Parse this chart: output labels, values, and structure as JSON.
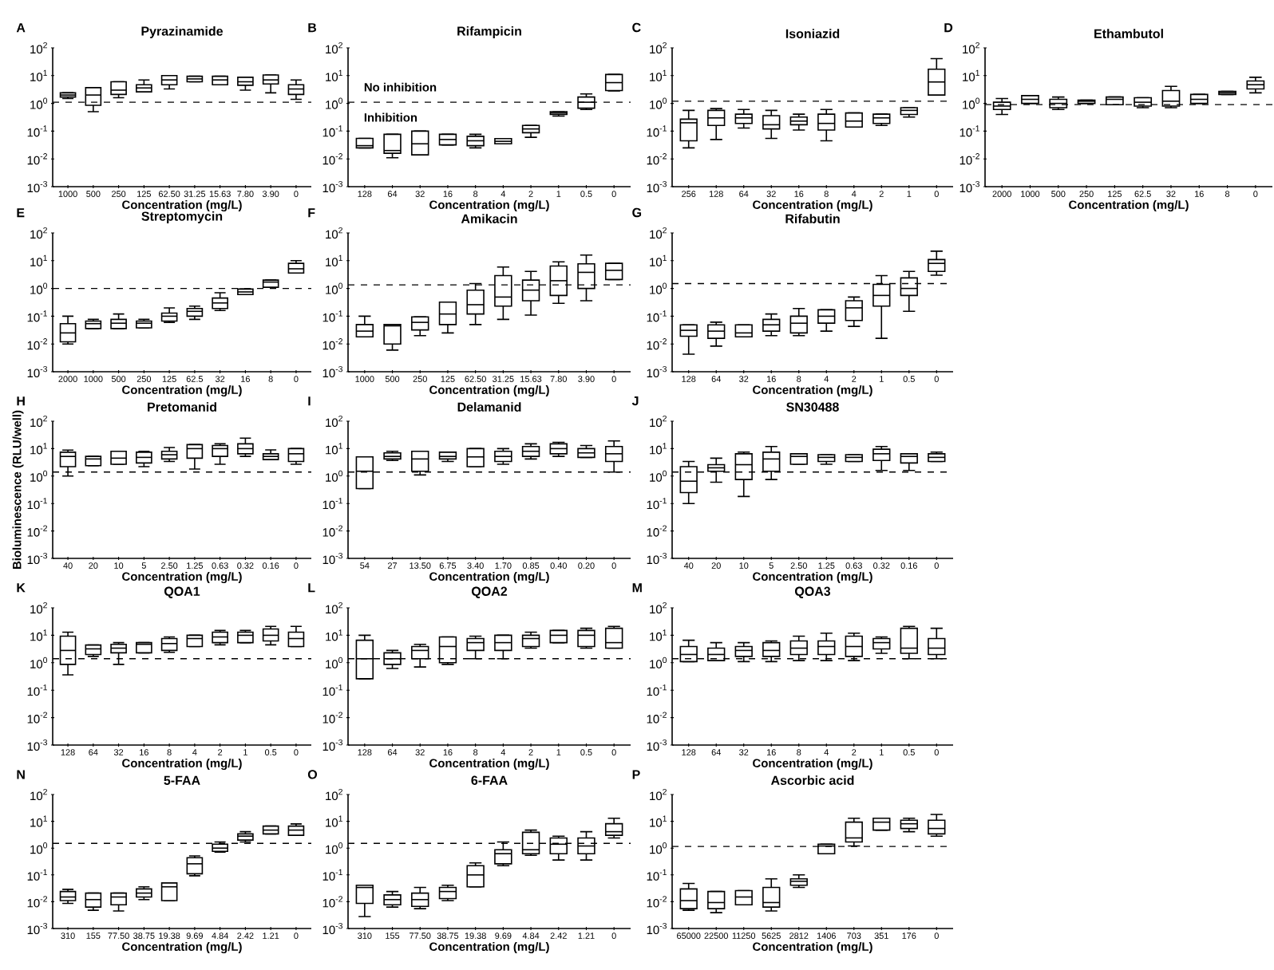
{
  "chart_data": [
    {
      "type": "box",
      "title": "Pyrazinamide",
      "xlabel": "Concentration (mg/L)",
      "log": true,
      "ylim": [
        0.001,
        100
      ],
      "yticks": [
        {
          "value": 0.001,
          "label": "10$^{-3}$"
        },
        {
          "value": 0.01,
          "label": "10$^{-2}$"
        },
        {
          "value": 0.1,
          "label": "10$^{-1}$"
        },
        {
          "value": 1,
          "label": "10$^{0}$"
        },
        {
          "value": 10,
          "label": "10$^{1}$"
        },
        {
          "value": 100,
          "label": "10$^{2}$"
        }
      ],
      "categories": [
        "1000",
        "500",
        "250",
        "125",
        "62.50",
        "31.25",
        "15.63",
        "7.80",
        "3.90",
        "0"
      ],
      "boxes": [
        {
          "low": 1.5,
          "q1": 1.7,
          "median": 2,
          "q3": 2.4,
          "high": 2.4
        },
        {
          "low": 0.5,
          "q1": 0.85,
          "median": 2,
          "q3": 3.7,
          "high": 3.7
        },
        {
          "low": 1.6,
          "q1": 2.1,
          "median": 3,
          "q3": 6,
          "high": 6
        },
        {
          "low": 2.6,
          "q1": 2.6,
          "median": 3.6,
          "q3": 4.7,
          "high": 7
        },
        {
          "low": 3.3,
          "q1": 4.7,
          "median": 7,
          "q3": 10,
          "high": 10
        },
        {
          "low": 6,
          "q1": 6,
          "median": 7.6,
          "q3": 9.5,
          "high": 9.5
        },
        {
          "low": 4.7,
          "q1": 4.7,
          "median": 7,
          "q3": 9.5,
          "high": 9.5
        },
        {
          "low": 3,
          "q1": 4.5,
          "median": 6,
          "q3": 8.7,
          "high": 8.7
        },
        {
          "low": 2.4,
          "q1": 5,
          "median": 7,
          "q3": 10.5,
          "high": 10.5
        },
        {
          "low": 1.4,
          "q1": 2.1,
          "median": 3.3,
          "q3": 4.7,
          "high": 7
        }
      ],
      "ref_lines": [
        {
          "axis": "y",
          "value": 1.1,
          "line_style": "dashed"
        }
      ],
      "annotations": [
        "A"
      ]
    },
    {
      "type": "box",
      "title": "Rifampicin",
      "xlabel": "Concentration (mg/L)",
      "log": true,
      "ylim": [
        0.001,
        100
      ],
      "yticks": [
        {
          "value": 0.001,
          "label": "10$^{-3}$"
        },
        {
          "value": 0.01,
          "label": "10$^{-2}$"
        },
        {
          "value": 0.1,
          "label": "10$^{-1}$"
        },
        {
          "value": 1,
          "label": "10$^{0}$"
        },
        {
          "value": 10,
          "label": "10$^{1}$"
        },
        {
          "value": 100,
          "label": "10$^{2}$"
        }
      ],
      "categories": [
        "128",
        "64",
        "32",
        "16",
        "8",
        "4",
        "2",
        "1",
        "0.5",
        "0"
      ],
      "boxes": [
        {
          "low": 0.025,
          "q1": 0.025,
          "median": 0.03,
          "q3": 0.055,
          "high": 0.055
        },
        {
          "low": 0.011,
          "q1": 0.016,
          "median": 0.02,
          "q3": 0.077,
          "high": 0.077
        },
        {
          "low": 0.014,
          "q1": 0.014,
          "median": 0.035,
          "q3": 0.1,
          "high": 0.1
        },
        {
          "low": 0.032,
          "q1": 0.032,
          "median": 0.05,
          "q3": 0.077,
          "high": 0.077
        },
        {
          "low": 0.025,
          "q1": 0.03,
          "median": 0.045,
          "q3": 0.065,
          "high": 0.077
        },
        {
          "low": 0.035,
          "q1": 0.035,
          "median": 0.043,
          "q3": 0.054,
          "high": 0.054
        },
        {
          "low": 0.06,
          "q1": 0.088,
          "median": 0.12,
          "q3": 0.16,
          "high": 0.16
        },
        {
          "low": 0.35,
          "q1": 0.4,
          "median": 0.45,
          "q3": 0.5,
          "high": 0.5
        },
        {
          "low": 0.6,
          "q1": 0.67,
          "median": 1.1,
          "q3": 1.7,
          "high": 2.2
        },
        {
          "low": 2.8,
          "q1": 2.9,
          "median": 5.6,
          "q3": 11,
          "high": 11
        }
      ],
      "ref_lines": [
        {
          "axis": "y",
          "value": 1.1,
          "line_style": "dashed"
        }
      ],
      "annotations": [
        "B",
        "No inhibition",
        "Inhibition"
      ]
    },
    {
      "type": "box",
      "title": "Isoniazid",
      "xlabel": "Concentration (mg/L)",
      "log": true,
      "ylim": [
        0.001,
        100
      ],
      "yticks": [
        {
          "value": 0.001,
          "label": "10$^{-3}$"
        },
        {
          "value": 0.01,
          "label": "10$^{-2}$"
        },
        {
          "value": 0.1,
          "label": "10$^{-1}$"
        },
        {
          "value": 1,
          "label": "10$^{0}$"
        },
        {
          "value": 10,
          "label": "10$^{1}$"
        },
        {
          "value": 100,
          "label": "10$^{2}$"
        }
      ],
      "categories": [
        "256",
        "128",
        "64",
        "32",
        "16",
        "8",
        "4",
        "2",
        "1",
        "0"
      ],
      "boxes": [
        {
          "low": 0.025,
          "q1": 0.045,
          "median": 0.2,
          "q3": 0.27,
          "high": 0.56
        },
        {
          "low": 0.05,
          "q1": 0.16,
          "median": 0.3,
          "q3": 0.56,
          "high": 0.65
        },
        {
          "low": 0.13,
          "q1": 0.19,
          "median": 0.3,
          "q3": 0.41,
          "high": 0.6
        },
        {
          "low": 0.055,
          "q1": 0.12,
          "median": 0.17,
          "q3": 0.36,
          "high": 0.56
        },
        {
          "low": 0.11,
          "q1": 0.17,
          "median": 0.23,
          "q3": 0.32,
          "high": 0.41
        },
        {
          "low": 0.045,
          "q1": 0.11,
          "median": 0.19,
          "q3": 0.41,
          "high": 0.6
        },
        {
          "low": 0.14,
          "q1": 0.14,
          "median": 0.23,
          "q3": 0.45,
          "high": 0.45
        },
        {
          "low": 0.16,
          "q1": 0.19,
          "median": 0.3,
          "q3": 0.41,
          "high": 0.41
        },
        {
          "low": 0.32,
          "q1": 0.4,
          "median": 0.56,
          "q3": 0.7,
          "high": 0.7
        },
        {
          "low": 2,
          "q1": 2,
          "median": 5.9,
          "q3": 17,
          "high": 41
        }
      ],
      "ref_lines": [
        {
          "axis": "y",
          "value": 1.2,
          "line_style": "dashed"
        }
      ],
      "annotations": [
        "C"
      ]
    },
    {
      "type": "box",
      "title": "Ethambutol",
      "xlabel": "Concentration (mg/L)",
      "log": true,
      "ylim": [
        0.001,
        100
      ],
      "yticks": [
        {
          "value": 0.001,
          "label": "10$^{-3}$"
        },
        {
          "value": 0.01,
          "label": "10$^{-2}$"
        },
        {
          "value": 0.1,
          "label": "10$^{-1}$"
        },
        {
          "value": 1,
          "label": "10$^{0}$"
        },
        {
          "value": 10,
          "label": "10$^{1}$"
        },
        {
          "value": 100,
          "label": "10$^{2}$"
        }
      ],
      "categories": [
        "2000",
        "1000",
        "500",
        "250",
        "125",
        "62.5",
        "32",
        "16",
        "8",
        "0"
      ],
      "boxes": [
        {
          "low": 0.4,
          "q1": 0.6,
          "median": 0.8,
          "q3": 1.1,
          "high": 1.5
        },
        {
          "low": 1,
          "q1": 1,
          "median": 1.4,
          "q3": 1.9,
          "high": 1.9
        },
        {
          "low": 0.6,
          "q1": 0.7,
          "median": 1,
          "q3": 1.4,
          "high": 1.7
        },
        {
          "low": 1,
          "q1": 1,
          "median": 1.2,
          "q3": 1.3,
          "high": 1.3
        },
        {
          "low": 0.9,
          "q1": 0.9,
          "median": 1.4,
          "q3": 1.7,
          "high": 1.7
        },
        {
          "low": 0.7,
          "q1": 0.8,
          "median": 1.1,
          "q3": 1.6,
          "high": 1.6
        },
        {
          "low": 0.7,
          "q1": 0.8,
          "median": 1.2,
          "q3": 2.9,
          "high": 4.1
        },
        {
          "low": 1,
          "q1": 1,
          "median": 1.4,
          "q3": 2.1,
          "high": 2.1
        },
        {
          "low": 2.1,
          "q1": 2.1,
          "median": 2.4,
          "q3": 2.7,
          "high": 2.7
        },
        {
          "low": 2.4,
          "q1": 3.3,
          "median": 4.7,
          "q3": 6.4,
          "high": 8.7
        }
      ],
      "ref_lines": [
        {
          "axis": "y",
          "value": 0.9,
          "line_style": "dashed"
        }
      ],
      "annotations": [
        "D"
      ]
    },
    {
      "type": "box",
      "title": "Streptomycin",
      "xlabel": "Concentration (mg/L)",
      "log": true,
      "ylim": [
        0.001,
        100
      ],
      "yticks": [
        {
          "value": 0.001,
          "label": "10$^{-3}$"
        },
        {
          "value": 0.01,
          "label": "10$^{-2}$"
        },
        {
          "value": 0.1,
          "label": "10$^{-1}$"
        },
        {
          "value": 1,
          "label": "10$^{0}$"
        },
        {
          "value": 10,
          "label": "10$^{1}$"
        },
        {
          "value": 100,
          "label": "10$^{2}$"
        }
      ],
      "categories": [
        "2000",
        "1000",
        "500",
        "250",
        "125",
        "62.5",
        "32",
        "16",
        "8",
        "0"
      ],
      "boxes": [
        {
          "low": 0.01,
          "q1": 0.012,
          "median": 0.025,
          "q3": 0.054,
          "high": 0.1
        },
        {
          "low": 0.036,
          "q1": 0.036,
          "median": 0.054,
          "q3": 0.067,
          "high": 0.077
        },
        {
          "low": 0.036,
          "q1": 0.036,
          "median": 0.056,
          "q3": 0.077,
          "high": 0.12
        },
        {
          "low": 0.038,
          "q1": 0.038,
          "median": 0.056,
          "q3": 0.067,
          "high": 0.077
        },
        {
          "low": 0.06,
          "q1": 0.067,
          "median": 0.1,
          "q3": 0.13,
          "high": 0.2
        },
        {
          "low": 0.077,
          "q1": 0.1,
          "median": 0.15,
          "q3": 0.19,
          "high": 0.23
        },
        {
          "low": 0.16,
          "q1": 0.19,
          "median": 0.3,
          "q3": 0.45,
          "high": 0.7
        },
        {
          "low": 0.6,
          "q1": 0.6,
          "median": 0.75,
          "q3": 0.95,
          "high": 0.95
        },
        {
          "low": 1.1,
          "q1": 1.1,
          "median": 1.7,
          "q3": 2,
          "high": 2
        },
        {
          "low": 3.6,
          "q1": 3.6,
          "median": 5.1,
          "q3": 8,
          "high": 10
        }
      ],
      "ref_lines": [
        {
          "axis": "y",
          "value": 1,
          "line_style": "dashed"
        }
      ],
      "annotations": [
        "E"
      ]
    },
    {
      "type": "box",
      "title": "Amikacin",
      "xlabel": "Concentration (mg/L)",
      "log": true,
      "ylim": [
        0.001,
        100
      ],
      "yticks": [
        {
          "value": 0.001,
          "label": "10$^{-3}$"
        },
        {
          "value": 0.01,
          "label": "10$^{-2}$"
        },
        {
          "value": 0.1,
          "label": "10$^{-1}$"
        },
        {
          "value": 1,
          "label": "10$^{0}$"
        },
        {
          "value": 10,
          "label": "10$^{1}$"
        },
        {
          "value": 100,
          "label": "10$^{2}$"
        }
      ],
      "categories": [
        "1000",
        "500",
        "250",
        "125",
        "62.50",
        "31.25",
        "15.63",
        "7.80",
        "3.90",
        "0"
      ],
      "boxes": [
        {
          "low": 0.018,
          "q1": 0.018,
          "median": 0.029,
          "q3": 0.05,
          "high": 0.1
        },
        {
          "low": 0.006,
          "q1": 0.01,
          "median": 0.045,
          "q3": 0.05,
          "high": 0.05
        },
        {
          "low": 0.02,
          "q1": 0.032,
          "median": 0.06,
          "q3": 0.095,
          "high": 0.095
        },
        {
          "low": 0.025,
          "q1": 0.05,
          "median": 0.12,
          "q3": 0.32,
          "high": 0.32
        },
        {
          "low": 0.05,
          "q1": 0.12,
          "median": 0.26,
          "q3": 0.87,
          "high": 1.5
        },
        {
          "low": 0.077,
          "q1": 0.23,
          "median": 0.49,
          "q3": 2.9,
          "high": 5.9
        },
        {
          "low": 0.11,
          "q1": 0.36,
          "median": 0.87,
          "q3": 2,
          "high": 4.1
        },
        {
          "low": 0.29,
          "q1": 0.56,
          "median": 1.9,
          "q3": 6.4,
          "high": 9.1
        },
        {
          "low": 0.36,
          "q1": 1,
          "median": 3.8,
          "q3": 7.7,
          "high": 16
        },
        {
          "low": 2.1,
          "q1": 2.1,
          "median": 4.5,
          "q3": 8,
          "high": 8
        }
      ],
      "ref_lines": [
        {
          "axis": "y",
          "value": 1.35,
          "line_style": "dashed"
        }
      ],
      "annotations": [
        "F"
      ]
    },
    {
      "type": "box",
      "title": "Rifabutin",
      "xlabel": "Concentration (mg/L)",
      "log": true,
      "ylim": [
        0.001,
        100
      ],
      "yticks": [
        {
          "value": 0.001,
          "label": "10$^{-3}$"
        },
        {
          "value": 0.01,
          "label": "10$^{-2}$"
        },
        {
          "value": 0.1,
          "label": "10$^{-1}$"
        },
        {
          "value": 1,
          "label": "10$^{0}$"
        },
        {
          "value": 10,
          "label": "10$^{1}$"
        },
        {
          "value": 100,
          "label": "10$^{2}$"
        }
      ],
      "categories": [
        "128",
        "64",
        "32",
        "16",
        "8",
        "4",
        "2",
        "1",
        "0.5",
        "0"
      ],
      "boxes": [
        {
          "low": 0.0043,
          "q1": 0.019,
          "median": 0.031,
          "q3": 0.049,
          "high": 0.049
        },
        {
          "low": 0.0084,
          "q1": 0.016,
          "median": 0.029,
          "q3": 0.049,
          "high": 0.061
        },
        {
          "low": 0.018,
          "q1": 0.018,
          "median": 0.025,
          "q3": 0.049,
          "high": 0.049
        },
        {
          "low": 0.02,
          "q1": 0.029,
          "median": 0.049,
          "q3": 0.077,
          "high": 0.12
        },
        {
          "low": 0.02,
          "q1": 0.025,
          "median": 0.056,
          "q3": 0.1,
          "high": 0.19
        },
        {
          "low": 0.029,
          "q1": 0.056,
          "median": 0.1,
          "q3": 0.17,
          "high": 0.17
        },
        {
          "low": 0.043,
          "q1": 0.07,
          "median": 0.2,
          "q3": 0.36,
          "high": 0.49
        },
        {
          "low": 0.016,
          "q1": 0.23,
          "median": 0.56,
          "q3": 1.4,
          "high": 2.9
        },
        {
          "low": 0.15,
          "q1": 0.56,
          "median": 1,
          "q3": 2.4,
          "high": 4.1
        },
        {
          "low": 3,
          "q1": 4.1,
          "median": 8,
          "q3": 11,
          "high": 22
        }
      ],
      "ref_lines": [
        {
          "axis": "y",
          "value": 1.5,
          "line_style": "dashed"
        }
      ],
      "annotations": [
        "G"
      ]
    },
    {
      "type": "box",
      "title": "Pretomanid",
      "xlabel": "Concentration (mg/L)",
      "ylabel": "Bioluminescence (RLU/well)",
      "log": true,
      "ylim": [
        0.001,
        100
      ],
      "yticks": [
        {
          "value": 0.001,
          "label": "10$^{-3}$"
        },
        {
          "value": 0.01,
          "label": "10$^{-2}$"
        },
        {
          "value": 0.1,
          "label": "10$^{-1}$"
        },
        {
          "value": 1,
          "label": "10$^{0}$"
        },
        {
          "value": 10,
          "label": "10$^{1}$"
        },
        {
          "value": 100,
          "label": "10$^{2}$"
        }
      ],
      "categories": [
        "40",
        "20",
        "10",
        "5",
        "2.50",
        "1.25",
        "0.63",
        "0.32",
        "0.16",
        "0"
      ],
      "boxes": [
        {
          "low": 1,
          "q1": 2.2,
          "median": 5.2,
          "q3": 7.4,
          "high": 8.8
        },
        {
          "low": 2.4,
          "q1": 2.4,
          "median": 4.2,
          "q3": 5.2,
          "high": 5.2
        },
        {
          "low": 2.7,
          "q1": 2.7,
          "median": 4.5,
          "q3": 8,
          "high": 8
        },
        {
          "low": 2.2,
          "q1": 3,
          "median": 4.8,
          "q3": 7.4,
          "high": 8
        },
        {
          "low": 3.4,
          "q1": 4.2,
          "median": 6,
          "q3": 8,
          "high": 11
        },
        {
          "low": 1.8,
          "q1": 4.5,
          "median": 10,
          "q3": 14,
          "high": 14
        },
        {
          "low": 2.7,
          "q1": 5.2,
          "median": 10,
          "q3": 13,
          "high": 15
        },
        {
          "low": 5.2,
          "q1": 6.5,
          "median": 10,
          "q3": 15,
          "high": 24
        },
        {
          "low": 4,
          "q1": 4,
          "median": 5.2,
          "q3": 6.5,
          "high": 9
        },
        {
          "low": 2.7,
          "q1": 3.4,
          "median": 6.5,
          "q3": 10,
          "high": 10
        }
      ],
      "ref_lines": [
        {
          "axis": "y",
          "value": 1.4,
          "line_style": "dashed"
        }
      ],
      "annotations": [
        "H"
      ]
    },
    {
      "type": "box",
      "title": "Delamanid",
      "xlabel": "Concentration (mg/L)",
      "log": true,
      "ylim": [
        0.001,
        100
      ],
      "yticks": [
        {
          "value": 0.001,
          "label": "10$^{-3}$"
        },
        {
          "value": 0.01,
          "label": "10$^{-2}$"
        },
        {
          "value": 0.1,
          "label": "10$^{-1}$"
        },
        {
          "value": 1,
          "label": "10$^{0}$"
        },
        {
          "value": 10,
          "label": "10$^{1}$"
        },
        {
          "value": 100,
          "label": "10$^{2}$"
        }
      ],
      "categories": [
        "54",
        "27",
        "13.50",
        "6.75",
        "3.40",
        "1.70",
        "0.85",
        "0.40",
        "0.20",
        "0"
      ],
      "boxes": [
        {
          "low": 0.35,
          "q1": 0.35,
          "median": 1.5,
          "q3": 5,
          "high": 5
        },
        {
          "low": 3.7,
          "q1": 4.2,
          "median": 5.2,
          "q3": 7,
          "high": 8
        },
        {
          "low": 1.1,
          "q1": 1.5,
          "median": 4.2,
          "q3": 8,
          "high": 8
        },
        {
          "low": 3.4,
          "q1": 4.2,
          "median": 5.2,
          "q3": 7.4,
          "high": 7.4
        },
        {
          "low": 2.2,
          "q1": 2.2,
          "median": 5,
          "q3": 10,
          "high": 10
        },
        {
          "low": 2.7,
          "q1": 3.4,
          "median": 5.2,
          "q3": 8,
          "high": 10
        },
        {
          "low": 4.2,
          "q1": 5.2,
          "median": 8,
          "q3": 12,
          "high": 15
        },
        {
          "low": 5.2,
          "q1": 6.5,
          "median": 10,
          "q3": 15,
          "high": 17
        },
        {
          "low": 4.8,
          "q1": 4.8,
          "median": 7,
          "q3": 10,
          "high": 13
        },
        {
          "low": 1.4,
          "q1": 3.4,
          "median": 6.5,
          "q3": 12,
          "high": 19
        }
      ],
      "ref_lines": [
        {
          "axis": "y",
          "value": 1.4,
          "line_style": "dashed"
        }
      ],
      "annotations": [
        "I"
      ]
    },
    {
      "type": "box",
      "title": "SN30488",
      "xlabel": "Concentration (mg/L)",
      "log": true,
      "ylim": [
        0.001,
        100
      ],
      "yticks": [
        {
          "value": 0.001,
          "label": "10$^{-3}$"
        },
        {
          "value": 0.01,
          "label": "10$^{-2}$"
        },
        {
          "value": 0.1,
          "label": "10$^{-1}$"
        },
        {
          "value": 1,
          "label": "10$^{0}$"
        },
        {
          "value": 10,
          "label": "10$^{1}$"
        },
        {
          "value": 100,
          "label": "10$^{2}$"
        }
      ],
      "categories": [
        "40",
        "20",
        "10",
        "5",
        "2.50",
        "1.25",
        "0.63",
        "0.32",
        "0.16",
        "0"
      ],
      "boxes": [
        {
          "low": 0.1,
          "q1": 0.25,
          "median": 0.65,
          "q3": 2.2,
          "high": 3.4
        },
        {
          "low": 0.6,
          "q1": 1.5,
          "median": 2,
          "q3": 2.6,
          "high": 4.5
        },
        {
          "low": 0.18,
          "q1": 0.75,
          "median": 2.6,
          "q3": 6.5,
          "high": 7.5
        },
        {
          "low": 0.75,
          "q1": 1.5,
          "median": 4.2,
          "q3": 7.4,
          "high": 12
        },
        {
          "low": 2.7,
          "q1": 2.7,
          "median": 5.2,
          "q3": 6.5,
          "high": 6.5
        },
        {
          "low": 2.7,
          "q1": 3.4,
          "median": 4.8,
          "q3": 6,
          "high": 6
        },
        {
          "low": 3.4,
          "q1": 3.4,
          "median": 4.8,
          "q3": 6,
          "high": 6
        },
        {
          "low": 1.6,
          "q1": 3.7,
          "median": 6.5,
          "q3": 9.5,
          "high": 12
        },
        {
          "low": 1.6,
          "q1": 3,
          "median": 5.2,
          "q3": 6.5,
          "high": 6.5
        },
        {
          "low": 3.4,
          "q1": 3.4,
          "median": 4.8,
          "q3": 6.5,
          "high": 7.5
        }
      ],
      "ref_lines": [
        {
          "axis": "y",
          "value": 1.4,
          "line_style": "dashed"
        }
      ],
      "annotations": [
        "J"
      ]
    },
    {
      "type": "box",
      "title": "QOA1",
      "xlabel": "Concentration (mg/L)",
      "log": true,
      "ylim": [
        0.001,
        100
      ],
      "yticks": [
        {
          "value": 0.001,
          "label": "10$^{-3}$"
        },
        {
          "value": 0.01,
          "label": "10$^{-2}$"
        },
        {
          "value": 0.1,
          "label": "10$^{-1}$"
        },
        {
          "value": 1,
          "label": "10$^{0}$"
        },
        {
          "value": 10,
          "label": "10$^{1}$"
        },
        {
          "value": 100,
          "label": "10$^{2}$"
        }
      ],
      "categories": [
        "128",
        "64",
        "32",
        "16",
        "8",
        "4",
        "2",
        "1",
        "0.5",
        "0"
      ],
      "boxes": [
        {
          "low": 0.36,
          "q1": 0.87,
          "median": 2.8,
          "q3": 9.3,
          "high": 13
        },
        {
          "low": 1.7,
          "q1": 2,
          "median": 3.2,
          "q3": 4.4,
          "high": 4.4
        },
        {
          "low": 0.87,
          "q1": 2.3,
          "median": 3.4,
          "q3": 4.7,
          "high": 5.4
        },
        {
          "low": 2.3,
          "q1": 2.3,
          "median": 4.7,
          "q3": 5.4,
          "high": 5.4
        },
        {
          "low": 2.4,
          "q1": 2.8,
          "median": 5,
          "q3": 7.6,
          "high": 8.7
        },
        {
          "low": 3.9,
          "q1": 3.9,
          "median": 7.6,
          "q3": 10,
          "high": 10
        },
        {
          "low": 4.5,
          "q1": 5.4,
          "median": 8.7,
          "q3": 13,
          "high": 15
        },
        {
          "low": 5.4,
          "q1": 5.4,
          "median": 10,
          "q3": 13,
          "high": 15
        },
        {
          "low": 4.5,
          "q1": 6.2,
          "median": 10,
          "q3": 17,
          "high": 21
        },
        {
          "low": 3.9,
          "q1": 3.9,
          "median": 7.6,
          "q3": 13,
          "high": 21
        }
      ],
      "ref_lines": [
        {
          "axis": "y",
          "value": 1.4,
          "line_style": "dashed"
        }
      ],
      "annotations": [
        "K"
      ]
    },
    {
      "type": "box",
      "title": "QOA2",
      "xlabel": "Concentration (mg/L)",
      "log": true,
      "ylim": [
        0.001,
        100
      ],
      "yticks": [
        {
          "value": 0.001,
          "label": "10$^{-3}$"
        },
        {
          "value": 0.01,
          "label": "10$^{-2}$"
        },
        {
          "value": 0.1,
          "label": "10$^{-1}$"
        },
        {
          "value": 1,
          "label": "10$^{0}$"
        },
        {
          "value": 10,
          "label": "10$^{1}$"
        },
        {
          "value": 100,
          "label": "10$^{2}$"
        }
      ],
      "categories": [
        "128",
        "64",
        "32",
        "16",
        "8",
        "4",
        "2",
        "1",
        "0.5",
        "0"
      ],
      "boxes": [
        {
          "low": 0.26,
          "q1": 0.26,
          "median": 1.4,
          "q3": 6.6,
          "high": 10
        },
        {
          "low": 0.62,
          "q1": 0.87,
          "median": 1.4,
          "q3": 2.3,
          "high": 2.8
        },
        {
          "low": 0.7,
          "q1": 1.4,
          "median": 2.8,
          "q3": 3.9,
          "high": 4.7
        },
        {
          "low": 0.87,
          "q1": 1,
          "median": 3.9,
          "q3": 8.7,
          "high": 8.7
        },
        {
          "low": 1.4,
          "q1": 2.8,
          "median": 5.4,
          "q3": 7.6,
          "high": 9.3
        },
        {
          "low": 1.4,
          "q1": 2.8,
          "median": 5.4,
          "q3": 10,
          "high": 10
        },
        {
          "low": 3.4,
          "q1": 3.9,
          "median": 7.6,
          "q3": 10,
          "high": 13
        },
        {
          "low": 5.4,
          "q1": 5.4,
          "median": 10,
          "q3": 15,
          "high": 15
        },
        {
          "low": 3.4,
          "q1": 3.9,
          "median": 10,
          "q3": 15,
          "high": 18
        },
        {
          "low": 3.4,
          "q1": 3.4,
          "median": 5.4,
          "q3": 18,
          "high": 21
        }
      ],
      "ref_lines": [
        {
          "axis": "y",
          "value": 1.4,
          "line_style": "dashed"
        }
      ],
      "annotations": [
        "L"
      ]
    },
    {
      "type": "box",
      "title": "QOA3",
      "xlabel": "Concentration (mg/L)",
      "log": true,
      "ylim": [
        0.001,
        100
      ],
      "yticks": [
        {
          "value": 0.001,
          "label": "10$^{-3}$"
        },
        {
          "value": 0.01,
          "label": "10$^{-2}$"
        },
        {
          "value": 0.1,
          "label": "10$^{-1}$"
        },
        {
          "value": 1,
          "label": "10$^{0}$"
        },
        {
          "value": 10,
          "label": "10$^{1}$"
        },
        {
          "value": 100,
          "label": "10$^{2}$"
        }
      ],
      "categories": [
        "128",
        "64",
        "32",
        "16",
        "8",
        "4",
        "2",
        "1",
        "0.5",
        "0"
      ],
      "boxes": [
        {
          "low": 1.1,
          "q1": 1.1,
          "median": 2,
          "q3": 3.9,
          "high": 6.6
        },
        {
          "low": 1.2,
          "q1": 1.2,
          "median": 2,
          "q3": 3.4,
          "high": 5.4
        },
        {
          "low": 1.1,
          "q1": 1.7,
          "median": 2.8,
          "q3": 3.9,
          "high": 5.4
        },
        {
          "low": 1.1,
          "q1": 1.7,
          "median": 2.8,
          "q3": 5.4,
          "high": 6.2
        },
        {
          "low": 1.2,
          "q1": 2,
          "median": 3.4,
          "q3": 6.2,
          "high": 9.3
        },
        {
          "low": 1.2,
          "q1": 2,
          "median": 3.9,
          "q3": 6.2,
          "high": 12
        },
        {
          "low": 1.2,
          "q1": 1.7,
          "median": 3.9,
          "q3": 9.3,
          "high": 12
        },
        {
          "low": 2.2,
          "q1": 3.2,
          "median": 5.4,
          "q3": 7.6,
          "high": 8.7
        },
        {
          "low": 1.4,
          "q1": 2.2,
          "median": 3.4,
          "q3": 18,
          "high": 21
        },
        {
          "low": 1.4,
          "q1": 2,
          "median": 3.4,
          "q3": 7.6,
          "high": 18
        }
      ],
      "ref_lines": [
        {
          "axis": "y",
          "value": 1.4,
          "line_style": "dashed"
        }
      ],
      "annotations": [
        "M"
      ]
    },
    {
      "type": "box",
      "title": "5-FAA",
      "xlabel": "Concentration (mg/L)",
      "log": true,
      "ylim": [
        0.001,
        100
      ],
      "yticks": [
        {
          "value": 0.001,
          "label": "10$^{-3}$"
        },
        {
          "value": 0.01,
          "label": "10$^{-2}$"
        },
        {
          "value": 0.1,
          "label": "10$^{-1}$"
        },
        {
          "value": 1,
          "label": "10$^{0}$"
        },
        {
          "value": 10,
          "label": "10$^{1}$"
        },
        {
          "value": 100,
          "label": "10$^{2}$"
        }
      ],
      "categories": [
        "310",
        "155",
        "77.50",
        "38.75",
        "19.38",
        "9.69",
        "4.84",
        "2.42",
        "1.21",
        "0"
      ],
      "boxes": [
        {
          "low": 0.0087,
          "q1": 0.011,
          "median": 0.015,
          "q3": 0.024,
          "high": 0.029
        },
        {
          "low": 0.0048,
          "q1": 0.0063,
          "median": 0.012,
          "q3": 0.021,
          "high": 0.021
        },
        {
          "low": 0.0045,
          "q1": 0.0077,
          "median": 0.015,
          "q3": 0.021,
          "high": 0.021
        },
        {
          "low": 0.012,
          "q1": 0.015,
          "median": 0.021,
          "q3": 0.03,
          "high": 0.036
        },
        {
          "low": 0.011,
          "q1": 0.011,
          "median": 0.036,
          "q3": 0.05,
          "high": 0.05
        },
        {
          "low": 0.093,
          "q1": 0.11,
          "median": 0.26,
          "q3": 0.44,
          "high": 0.51
        },
        {
          "low": 0.71,
          "q1": 0.76,
          "median": 1,
          "q3": 1.4,
          "high": 1.7
        },
        {
          "low": 1.7,
          "q1": 2,
          "median": 2.8,
          "q3": 3.4,
          "high": 4.1
        },
        {
          "low": 3.4,
          "q1": 3.4,
          "median": 4.7,
          "q3": 6.6,
          "high": 6.6
        },
        {
          "low": 3,
          "q1": 3,
          "median": 4.7,
          "q3": 6.6,
          "high": 8
        }
      ],
      "ref_lines": [
        {
          "axis": "y",
          "value": 1.5,
          "line_style": "dashed"
        }
      ],
      "annotations": [
        "N"
      ]
    },
    {
      "type": "box",
      "title": "6-FAA",
      "xlabel": "Concentration (mg/L)",
      "log": true,
      "ylim": [
        0.001,
        100
      ],
      "yticks": [
        {
          "value": 0.001,
          "label": "10$^{-3}$"
        },
        {
          "value": 0.01,
          "label": "10$^{-2}$"
        },
        {
          "value": 0.1,
          "label": "10$^{-1}$"
        },
        {
          "value": 1,
          "label": "10$^{0}$"
        },
        {
          "value": 10,
          "label": "10$^{1}$"
        },
        {
          "value": 100,
          "label": "10$^{2}$"
        }
      ],
      "categories": [
        "310",
        "155",
        "77.50",
        "38.75",
        "19.38",
        "9.69",
        "4.84",
        "2.42",
        "1.21",
        "0"
      ],
      "boxes": [
        {
          "low": 0.0028,
          "q1": 0.0087,
          "median": 0.034,
          "q3": 0.041,
          "high": 0.041
        },
        {
          "low": 0.0063,
          "q1": 0.0077,
          "median": 0.012,
          "q3": 0.018,
          "high": 0.024
        },
        {
          "low": 0.0055,
          "q1": 0.0067,
          "median": 0.012,
          "q3": 0.021,
          "high": 0.034
        },
        {
          "low": 0.011,
          "q1": 0.013,
          "median": 0.024,
          "q3": 0.034,
          "high": 0.041
        },
        {
          "low": 0.036,
          "q1": 0.036,
          "median": 0.1,
          "q3": 0.22,
          "high": 0.28
        },
        {
          "low": 0.22,
          "q1": 0.26,
          "median": 0.62,
          "q3": 0.87,
          "high": 1.7
        },
        {
          "low": 0.54,
          "q1": 0.62,
          "median": 0.87,
          "q3": 3.9,
          "high": 4.7
        },
        {
          "low": 0.36,
          "q1": 0.62,
          "median": 1.4,
          "q3": 2.4,
          "high": 2.8
        },
        {
          "low": 0.36,
          "q1": 0.62,
          "median": 1.2,
          "q3": 2.4,
          "high": 4.1
        },
        {
          "low": 2.4,
          "q1": 3,
          "median": 4.1,
          "q3": 8.1,
          "high": 13
        }
      ],
      "ref_lines": [
        {
          "axis": "y",
          "value": 1.5,
          "line_style": "dashed"
        }
      ],
      "annotations": [
        "O"
      ]
    },
    {
      "type": "box",
      "title": "Ascorbic acid",
      "xlabel": "Concentration (mg/L)",
      "log": true,
      "ylim": [
        0.001,
        100
      ],
      "yticks": [
        {
          "value": 0.001,
          "label": "10$^{-3}$"
        },
        {
          "value": 0.01,
          "label": "10$^{-2}$"
        },
        {
          "value": 0.1,
          "label": "10$^{-1}$"
        },
        {
          "value": 1,
          "label": "10$^{0}$"
        },
        {
          "value": 10,
          "label": "10$^{1}$"
        },
        {
          "value": 100,
          "label": "10$^{2}$"
        }
      ],
      "categories": [
        "65000",
        "22500",
        "11250",
        "5625",
        "2812",
        "1406",
        "703",
        "351",
        "176",
        "0"
      ],
      "boxes": [
        {
          "low": 0.0048,
          "q1": 0.0055,
          "median": 0.011,
          "q3": 0.03,
          "high": 0.048
        },
        {
          "low": 0.0039,
          "q1": 0.0055,
          "median": 0.0093,
          "q3": 0.024,
          "high": 0.024
        },
        {
          "low": 0.0077,
          "q1": 0.0077,
          "median": 0.015,
          "q3": 0.026,
          "high": 0.026
        },
        {
          "low": 0.0045,
          "q1": 0.0063,
          "median": 0.0093,
          "q3": 0.034,
          "high": 0.071
        },
        {
          "low": 0.034,
          "q1": 0.041,
          "median": 0.058,
          "q3": 0.071,
          "high": 0.1
        },
        {
          "low": 0.62,
          "q1": 0.62,
          "median": 1.2,
          "q3": 1.4,
          "high": 1.4
        },
        {
          "low": 1.2,
          "q1": 1.7,
          "median": 2.4,
          "q3": 9.3,
          "high": 13
        },
        {
          "low": 4.7,
          "q1": 4.7,
          "median": 9.3,
          "q3": 13,
          "high": 13
        },
        {
          "low": 4.1,
          "q1": 5.4,
          "median": 8.1,
          "q3": 11,
          "high": 13
        },
        {
          "low": 2.8,
          "q1": 3.4,
          "median": 5.4,
          "q3": 11,
          "high": 18
        }
      ],
      "ref_lines": [
        {
          "axis": "y",
          "value": 1.15,
          "line_style": "dashed"
        }
      ],
      "annotations": [
        "P"
      ]
    }
  ]
}
